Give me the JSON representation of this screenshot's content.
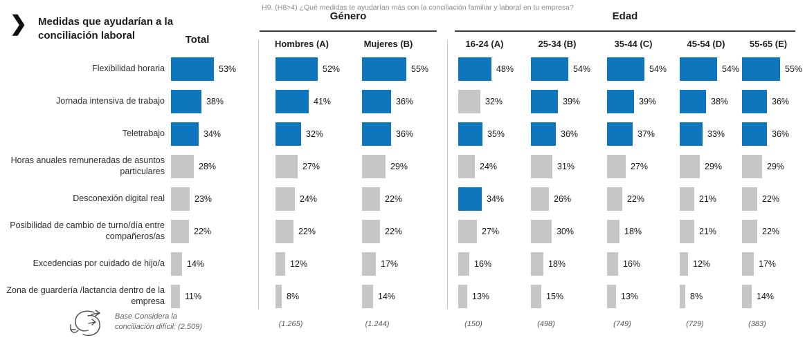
{
  "header": {
    "chevron": "❯",
    "title": "Medidas que ayudarían a la conciliación laboral",
    "question": "H9. (H8>4) ¿Qué medidas te ayudarían más con la conciliación familiar y laboral en tu empresa?"
  },
  "footer": {
    "base_note_line1": "Base Considera la",
    "base_note_line2": "conciliación difícil: (2.509)"
  },
  "colors": {
    "bar_highlight": "#0e76bd",
    "bar_default": "#c6c6c8"
  },
  "chart_data": {
    "type": "bar",
    "orientation": "horizontal",
    "unit": "%",
    "title": "Medidas que ayudarían a la conciliación laboral",
    "subtitle": "H9. (H8>4) ¿Qué medidas te ayudarían más con la conciliación familiar y laboral en tu empresa?",
    "xlim": [
      0,
      60
    ],
    "grid": false,
    "legend_note": "Blue bars mark the top-3 measures within each column; gray otherwise",
    "categories": [
      "Flexibilidad horaria",
      "Jornada intensiva de trabajo",
      "Teletrabajo",
      "Horas anuales remuneradas de asuntos particulares",
      "Desconexión digital real",
      "Posibilidad de cambio de turno/día entre compañeros/as",
      "Excedencias por cuidado de hijo/a",
      "Zona de guardería /lactancia dentro de la empresa"
    ],
    "column_groups": [
      {
        "label": "",
        "columns": [
          "Total"
        ]
      },
      {
        "label": "Género",
        "columns": [
          "Hombres (A)",
          "Mujeres (B)"
        ]
      },
      {
        "label": "Edad",
        "columns": [
          "16-24 (A)",
          "25-34 (B)",
          "35-44 (C)",
          "45-54 (D)",
          "55-65 (E)"
        ]
      }
    ],
    "series": [
      {
        "name": "Total",
        "base": "(2.509)",
        "values": [
          53,
          38,
          34,
          28,
          23,
          22,
          14,
          11
        ],
        "highlighted": [
          true,
          true,
          true,
          false,
          false,
          false,
          false,
          false
        ]
      },
      {
        "name": "Hombres (A)",
        "base": "(1.265)",
        "values": [
          52,
          41,
          32,
          27,
          24,
          22,
          12,
          8
        ],
        "highlighted": [
          true,
          true,
          true,
          false,
          false,
          false,
          false,
          false
        ]
      },
      {
        "name": "Mujeres (B)",
        "base": "(1.244)",
        "values": [
          55,
          36,
          36,
          29,
          22,
          22,
          17,
          14
        ],
        "highlighted": [
          true,
          true,
          true,
          false,
          false,
          false,
          false,
          false
        ]
      },
      {
        "name": "16-24 (A)",
        "base": "(150)",
        "values": [
          48,
          32,
          35,
          24,
          34,
          27,
          16,
          13
        ],
        "highlighted": [
          true,
          false,
          true,
          false,
          true,
          false,
          false,
          false
        ]
      },
      {
        "name": "25-34 (B)",
        "base": "(498)",
        "values": [
          54,
          39,
          36,
          31,
          26,
          30,
          18,
          15
        ],
        "highlighted": [
          true,
          true,
          true,
          false,
          false,
          false,
          false,
          false
        ]
      },
      {
        "name": "35-44 (C)",
        "base": "(749)",
        "values": [
          54,
          39,
          37,
          27,
          22,
          18,
          16,
          13
        ],
        "highlighted": [
          true,
          true,
          true,
          false,
          false,
          false,
          false,
          false
        ]
      },
      {
        "name": "45-54 (D)",
        "base": "(729)",
        "values": [
          54,
          38,
          33,
          29,
          21,
          21,
          12,
          8
        ],
        "highlighted": [
          true,
          true,
          true,
          false,
          false,
          false,
          false,
          false
        ]
      },
      {
        "name": "55-65 (E)",
        "base": "(383)",
        "values": [
          55,
          36,
          36,
          29,
          22,
          22,
          17,
          14
        ],
        "highlighted": [
          true,
          true,
          true,
          false,
          false,
          false,
          false,
          false
        ]
      }
    ]
  }
}
